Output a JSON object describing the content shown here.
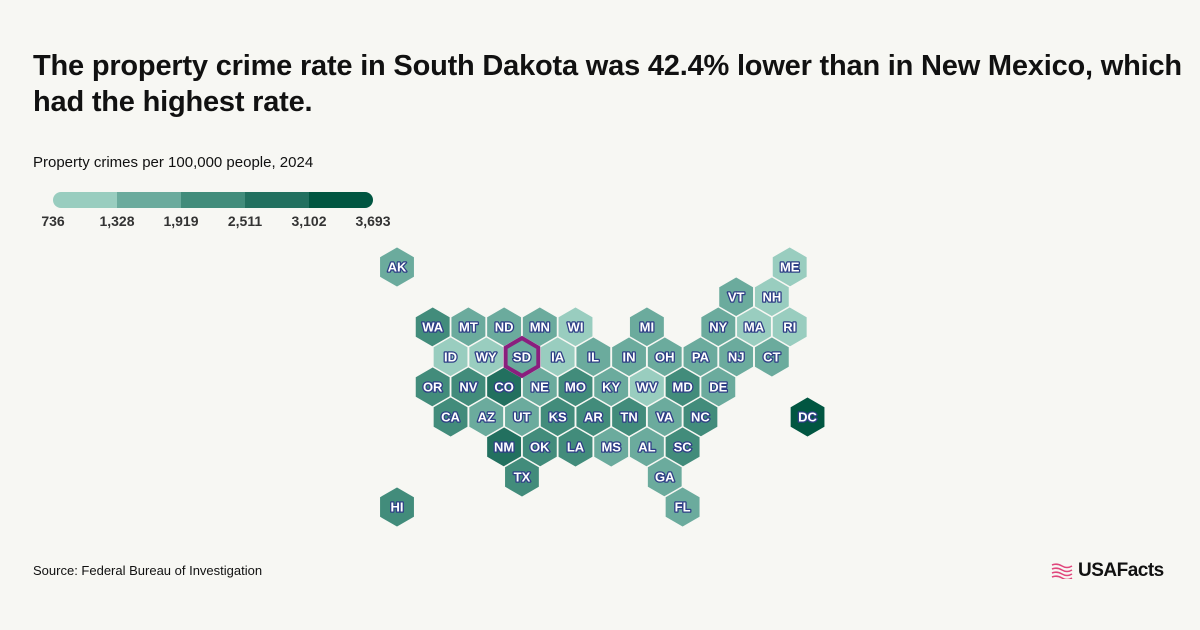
{
  "chart_data": {
    "type": "heatmap",
    "title": "The property crime rate in South Dakota was 42.4% lower than in New Mexico, which had the highest rate.",
    "subtitle": "Property crimes per 100,000 people, 2024",
    "legend": {
      "ticks": [
        "736",
        "1,328",
        "1,919",
        "2,511",
        "3,102",
        "3,693"
      ],
      "colors": [
        "#99cdbf",
        "#6bab9d",
        "#428c7b",
        "#22705f",
        "#015641"
      ]
    },
    "highlight": {
      "state": "SD",
      "color": "#8a1f7e"
    },
    "states": [
      {
        "abbr": "AK",
        "bin": 2
      },
      {
        "abbr": "ME",
        "bin": 1
      },
      {
        "abbr": "VT",
        "bin": 2
      },
      {
        "abbr": "NH",
        "bin": 1
      },
      {
        "abbr": "WA",
        "bin": 3
      },
      {
        "abbr": "MT",
        "bin": 2
      },
      {
        "abbr": "ND",
        "bin": 2
      },
      {
        "abbr": "MN",
        "bin": 2
      },
      {
        "abbr": "WI",
        "bin": 1
      },
      {
        "abbr": "MI",
        "bin": 2
      },
      {
        "abbr": "NY",
        "bin": 2
      },
      {
        "abbr": "MA",
        "bin": 1
      },
      {
        "abbr": "RI",
        "bin": 1
      },
      {
        "abbr": "ID",
        "bin": 1
      },
      {
        "abbr": "WY",
        "bin": 1
      },
      {
        "abbr": "SD",
        "bin": 2
      },
      {
        "abbr": "IA",
        "bin": 1
      },
      {
        "abbr": "IL",
        "bin": 2
      },
      {
        "abbr": "IN",
        "bin": 2
      },
      {
        "abbr": "OH",
        "bin": 2
      },
      {
        "abbr": "PA",
        "bin": 2
      },
      {
        "abbr": "NJ",
        "bin": 2
      },
      {
        "abbr": "CT",
        "bin": 2
      },
      {
        "abbr": "OR",
        "bin": 3
      },
      {
        "abbr": "NV",
        "bin": 3
      },
      {
        "abbr": "CO",
        "bin": 4
      },
      {
        "abbr": "NE",
        "bin": 2
      },
      {
        "abbr": "MO",
        "bin": 3
      },
      {
        "abbr": "KY",
        "bin": 2
      },
      {
        "abbr": "WV",
        "bin": 1
      },
      {
        "abbr": "MD",
        "bin": 3
      },
      {
        "abbr": "DE",
        "bin": 2
      },
      {
        "abbr": "CA",
        "bin": 3
      },
      {
        "abbr": "AZ",
        "bin": 2
      },
      {
        "abbr": "UT",
        "bin": 2
      },
      {
        "abbr": "KS",
        "bin": 3
      },
      {
        "abbr": "AR",
        "bin": 3
      },
      {
        "abbr": "TN",
        "bin": 3
      },
      {
        "abbr": "VA",
        "bin": 2
      },
      {
        "abbr": "NC",
        "bin": 3
      },
      {
        "abbr": "DC",
        "bin": 5
      },
      {
        "abbr": "NM",
        "bin": 4
      },
      {
        "abbr": "OK",
        "bin": 3
      },
      {
        "abbr": "LA",
        "bin": 3
      },
      {
        "abbr": "MS",
        "bin": 2
      },
      {
        "abbr": "AL",
        "bin": 2
      },
      {
        "abbr": "SC",
        "bin": 3
      },
      {
        "abbr": "TX",
        "bin": 3
      },
      {
        "abbr": "GA",
        "bin": 2
      },
      {
        "abbr": "HI",
        "bin": 3
      },
      {
        "abbr": "FL",
        "bin": 2
      }
    ]
  },
  "footer": {
    "source": "Source: Federal Bureau of Investigation",
    "logo": "USAFacts"
  }
}
